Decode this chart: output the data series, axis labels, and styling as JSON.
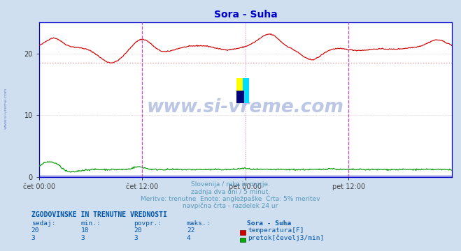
{
  "title": "Sora - Suha",
  "title_color": "#0000cc",
  "bg_color": "#d0dff0",
  "plot_bg_color": "#ffffff",
  "grid_color": "#ddbbbb",
  "x_tick_labels": [
    "čet 00:00",
    "čet 12:00",
    "pet 00:00",
    "pet 12:00"
  ],
  "x_tick_pos": [
    0.0,
    0.5,
    1.0,
    1.5
  ],
  "y_min": 0,
  "y_max": 25,
  "y_ticks": [
    0,
    10,
    20
  ],
  "temp_color": "#cc0000",
  "flow_color": "#009900",
  "avg_temp": 18.5,
  "avg_temp_color": "#dd9999",
  "avg_flow": 0.2,
  "avg_flow_color": "#0000bb",
  "vline_noon_color": "#cc44cc",
  "vline_day_color": "#cc99cc",
  "border_color": "#0000cc",
  "watermark": "www.si-vreme.com",
  "watermark_color": "#2244aa",
  "side_label": "www.si-vreme.com",
  "subtitle1": "Slovenija / reke in morje.",
  "subtitle2": "zadnja dva dni / 5 minut.",
  "subtitle3": "Meritve: trenutne  Enote: angležpaške  Črta: 5% meritev",
  "subtitle4": "navpična črta - razdelek 24 ur",
  "subtitle_color": "#5599bb",
  "table_header": "ZGODOVINSKE IN TRENUTNE VREDNOSTI",
  "col_labels": [
    "sedaj:",
    "min.:",
    "povpr.:",
    "maks.:"
  ],
  "station_name": "Sora - Suha",
  "temp_row": [
    20,
    18,
    20,
    22
  ],
  "flow_row": [
    3,
    3,
    3,
    4
  ],
  "table_color": "#0055aa",
  "legend_temp": "temperatura[F]",
  "legend_flow": "pretok[čevelj3/min]",
  "n_points": 576
}
